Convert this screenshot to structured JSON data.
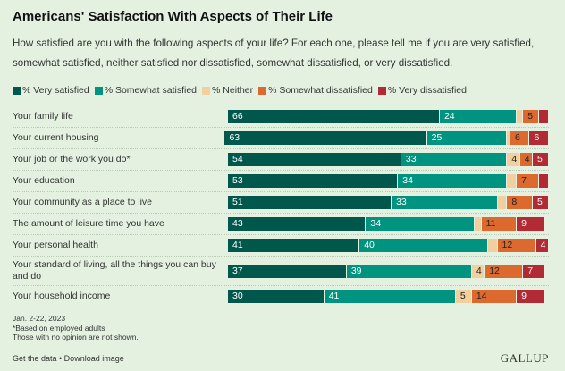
{
  "title": "Americans' Satisfaction With Aspects of Their Life",
  "subtitle": "How satisfied are you with the following aspects of your life? For each one, please tell me if you are very satisfied, somewhat satisfied, neither satisfied nor dissatisfied, somewhat dissatisfied, or very dissatisfied.",
  "chart_data": {
    "type": "bar",
    "orientation": "horizontal",
    "stacked": true,
    "title": "Americans' Satisfaction With Aspects of Their Life",
    "legend_position": "top",
    "categories": [
      "Your family life",
      "Your current housing",
      "Your job or the work you do*",
      "Your education",
      "Your community as a place to live",
      "The amount of leisure time you have",
      "Your personal health",
      "Your standard of living, all the things you can buy and do",
      "Your household income"
    ],
    "series": [
      {
        "name": "% Very satisfied",
        "color": "#00584d",
        "values": [
          66,
          63,
          54,
          53,
          51,
          43,
          41,
          37,
          30
        ],
        "labeled": [
          true,
          true,
          true,
          true,
          true,
          true,
          true,
          true,
          true
        ]
      },
      {
        "name": "% Somewhat satisfied",
        "color": "#009480",
        "values": [
          24,
          25,
          33,
          34,
          33,
          34,
          40,
          39,
          41
        ],
        "labeled": [
          true,
          true,
          true,
          true,
          true,
          true,
          true,
          true,
          true
        ]
      },
      {
        "name": "% Neither",
        "color": "#f2cf9e",
        "values": [
          2,
          1,
          4,
          3,
          3,
          2,
          3,
          4,
          5
        ],
        "labeled": [
          false,
          false,
          true,
          false,
          false,
          false,
          false,
          true,
          true
        ]
      },
      {
        "name": "% Somewhat dissatisfied",
        "color": "#dc6a2f",
        "values": [
          5,
          6,
          4,
          7,
          8,
          11,
          12,
          12,
          14
        ],
        "labeled": [
          true,
          true,
          true,
          true,
          true,
          true,
          true,
          true,
          true
        ]
      },
      {
        "name": "% Very dissatisfied",
        "color": "#b22a34",
        "values": [
          3,
          6,
          5,
          3,
          5,
          9,
          4,
          7,
          9
        ],
        "labeled": [
          false,
          true,
          true,
          false,
          true,
          true,
          true,
          true,
          true
        ]
      }
    ]
  },
  "footer": {
    "date": "Jan. 2-22, 2023",
    "note1": "*Based on employed adults",
    "note2": "Those with no opinion are not shown.",
    "links": "Get the data • Download image",
    "logo": "GALLUP"
  }
}
